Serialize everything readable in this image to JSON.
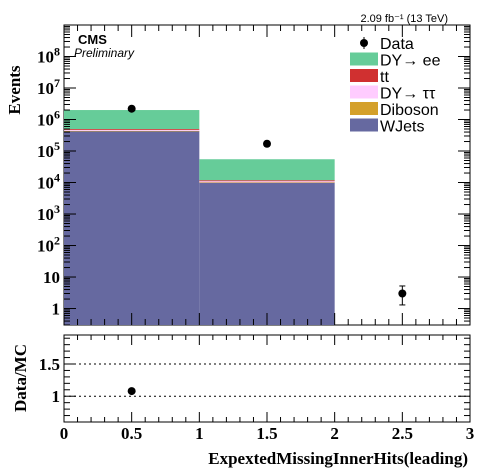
{
  "header": {
    "experiment": "CMS",
    "status": "Preliminary",
    "lumi_text": "2.09 fb⁻¹ (13 TeV)"
  },
  "chart_data": [
    {
      "panel": "main",
      "type": "bar",
      "stacked": true,
      "log_scale_y": true,
      "ylabel": "Events",
      "ylim": [
        0.3,
        1000000000
      ],
      "xlim": [
        0,
        3
      ],
      "bins": [
        [
          0,
          1
        ],
        [
          1,
          2
        ],
        [
          2,
          3
        ]
      ],
      "y_tick_labels": [
        "1",
        "10",
        "10²",
        "10³",
        "10⁴",
        "10⁵",
        "10⁶",
        "10⁷",
        "10⁸"
      ],
      "y_tick_values": [
        1,
        10,
        100,
        1000,
        10000,
        100000,
        1000000,
        10000000,
        100000000
      ],
      "series": [
        {
          "name": "WJets",
          "color": "#6669a0",
          "values": [
            430000,
            10000,
            0
          ]
        },
        {
          "name": "Diboson",
          "color": "#d4a02a",
          "values": [
            8000,
            200,
            0
          ]
        },
        {
          "name": "DY→ ττ",
          "color": "#ffccff",
          "values": [
            30000,
            800,
            0
          ]
        },
        {
          "name": "tt",
          "color": "#d03030",
          "values": [
            30000,
            800,
            0
          ]
        },
        {
          "name": "DY→ ee",
          "color": "#66cc99",
          "values": [
            1500000,
            43000,
            0
          ]
        }
      ],
      "data": {
        "name": "Data",
        "x": [
          0.5,
          1.5,
          2.5
        ],
        "y": [
          2200000,
          170000,
          3
        ],
        "yerr": [
          [
            0,
            0,
            1.7
          ],
          [
            0,
            0,
            2.2
          ]
        ]
      },
      "legend": {
        "placement": "top-right",
        "order": [
          "Data",
          "DY→ ee",
          "tt",
          "DY→ ττ",
          "Diboson",
          "WJets"
        ]
      }
    },
    {
      "panel": "ratio",
      "type": "scatter",
      "ylabel": "Data/MC",
      "xlabel": "ExpextedMissingInnerHits(leading)",
      "xlim": [
        0,
        3
      ],
      "ylim": [
        0.6,
        1.95
      ],
      "x_tick_labels": [
        "0",
        "0.5",
        "1",
        "1.5",
        "2",
        "2.5",
        "3"
      ],
      "x_tick_values": [
        0,
        0.5,
        1,
        1.5,
        2,
        2.5,
        3
      ],
      "y_tick_labels": [
        "1",
        "1.5"
      ],
      "y_tick_values": [
        1,
        1.5
      ],
      "dashed_lines_at": [
        1,
        1.5
      ],
      "x": [
        0.5
      ],
      "y": [
        1.08
      ]
    }
  ]
}
